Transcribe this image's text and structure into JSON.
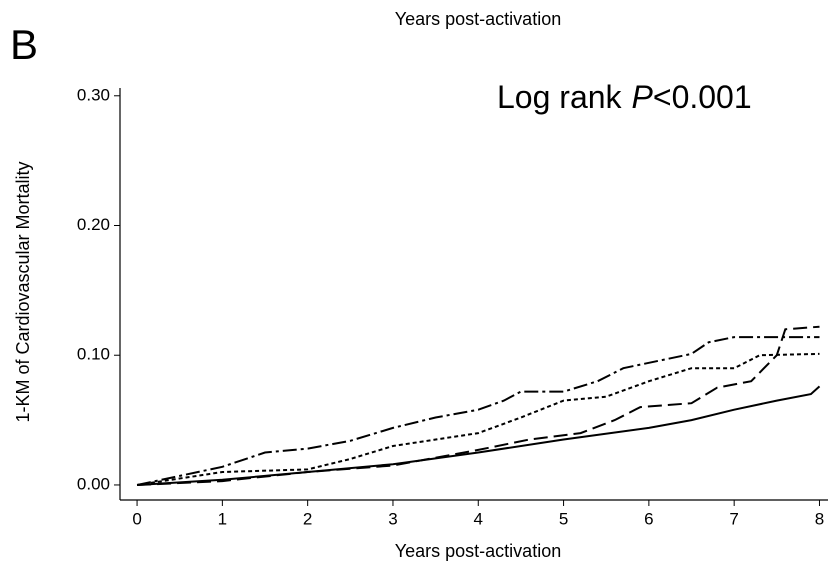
{
  "header": {
    "text": "Years post-activation"
  },
  "chart_data": {
    "type": "line",
    "panel_label": "B",
    "xlabel": "Years post-activation",
    "ylabel": "1-KM of Cardiovascular Mortality",
    "annotation": [
      "Log rank",
      "P",
      "<0.001"
    ],
    "xlim": [
      -0.2,
      8.1
    ],
    "ylim": [
      -0.0116,
      0.306
    ],
    "xticks": [
      0,
      1,
      2,
      3,
      4,
      5,
      6,
      7,
      8
    ],
    "yticks": [
      {
        "value": 0,
        "label": "0.00"
      },
      {
        "value": 0.1,
        "label": "0.10"
      },
      {
        "value": 0.2,
        "label": "0.20"
      },
      {
        "value": 0.3,
        "label": "0.30"
      }
    ],
    "grid": false,
    "series": [
      {
        "color": "#000000",
        "dash": "solid",
        "x": [
          0,
          1,
          2,
          3,
          4,
          5,
          6,
          6.5,
          7,
          7.5,
          7.9,
          8
        ],
        "values": [
          0,
          0.004,
          0.01,
          0.016,
          0.025,
          0.035,
          0.044,
          0.05,
          0.058,
          0.065,
          0.07,
          0.076
        ]
      },
      {
        "color": "#000000",
        "dash": "long-dash",
        "x": [
          0,
          1,
          2,
          3,
          4,
          4.6,
          5.2,
          5.6,
          5.9,
          6.5,
          6.8,
          7.2,
          7.5,
          7.6,
          8
        ],
        "values": [
          0,
          0.003,
          0.01,
          0.015,
          0.027,
          0.035,
          0.04,
          0.05,
          0.06,
          0.063,
          0.075,
          0.08,
          0.1,
          0.12,
          0.122
        ]
      },
      {
        "color": "#000000",
        "dash": "short-dash",
        "x": [
          0,
          1,
          2,
          2.5,
          3,
          4,
          4.5,
          5,
          5.5,
          6,
          6.5,
          7,
          7.3,
          8
        ],
        "values": [
          0,
          0.01,
          0.012,
          0.02,
          0.03,
          0.04,
          0.052,
          0.065,
          0.068,
          0.08,
          0.09,
          0.09,
          0.1,
          0.101
        ]
      },
      {
        "color": "#000000",
        "dash": "dash-dot",
        "x": [
          0,
          1,
          1.5,
          2,
          2.5,
          3,
          3.5,
          4,
          4.3,
          4.5,
          5,
          5.4,
          5.7,
          6.5,
          6.7,
          7,
          8
        ],
        "values": [
          0,
          0.014,
          0.025,
          0.028,
          0.034,
          0.044,
          0.052,
          0.058,
          0.065,
          0.072,
          0.072,
          0.08,
          0.09,
          0.101,
          0.11,
          0.114,
          0.114
        ]
      }
    ]
  }
}
